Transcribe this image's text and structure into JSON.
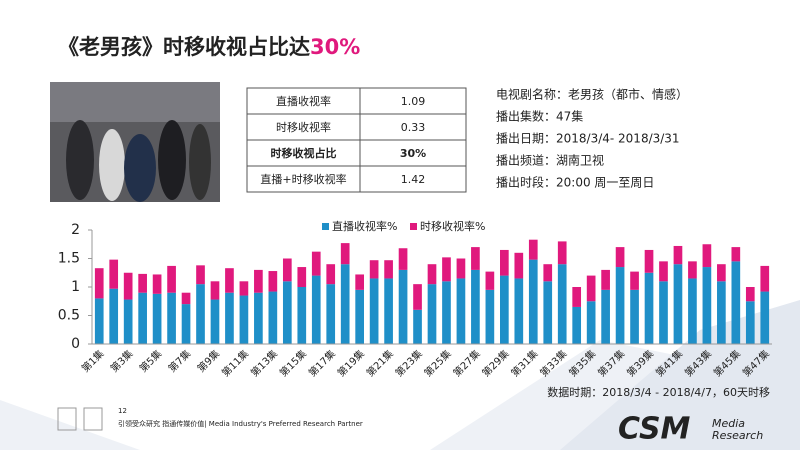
{
  "title": {
    "main": "《老男孩》时移收视占比达",
    "highlight": "30%"
  },
  "table": {
    "rows": [
      [
        "直播收视率",
        "1.09"
      ],
      [
        "时移收视率",
        "0.33"
      ],
      [
        "时移收视占比",
        "30%"
      ],
      [
        "直播+时移收视率",
        "1.42"
      ]
    ],
    "highlight_row": 2
  },
  "info": [
    "电视剧名称：老男孩（都市、情感）",
    "播出集数：47集",
    "播出日期：2018/3/4- 2018/3/31",
    "播出频道：湖南卫视",
    "播出时段：20:00 周一至周日"
  ],
  "chart_data": {
    "type": "stacked_bar",
    "categories": [
      "第1集",
      null,
      "第3集",
      null,
      "第5集",
      null,
      "第7集",
      null,
      "第9集",
      null,
      "第11集",
      null,
      "第13集",
      null,
      "第15集",
      null,
      "第17集",
      null,
      "第19集",
      null,
      "第21集",
      null,
      "第23集",
      null,
      "第25集",
      null,
      "第27集",
      null,
      "第29集",
      null,
      "第31集",
      null,
      "第33集",
      null,
      "第35集",
      null,
      "第37集",
      null,
      "第39集",
      null,
      "第41集",
      null,
      "第43集",
      null,
      "第45集",
      null,
      "第47集"
    ],
    "series": [
      {
        "name": "直播收视率%",
        "color": "#1f8fc8",
        "values": [
          0.8,
          0.97,
          0.78,
          0.9,
          0.88,
          0.9,
          0.7,
          1.05,
          0.78,
          0.9,
          0.85,
          0.9,
          0.92,
          1.1,
          1.0,
          1.2,
          1.05,
          1.4,
          0.95,
          1.15,
          1.15,
          1.3,
          0.6,
          1.05,
          1.1,
          1.15,
          1.3,
          0.95,
          1.2,
          1.15,
          1.48,
          1.1,
          1.4,
          0.65,
          0.75,
          0.95,
          1.35,
          0.95,
          1.25,
          1.1,
          1.4,
          1.15,
          1.35,
          1.1,
          1.45,
          0.75,
          0.92
        ]
      },
      {
        "name": "时移收视率%",
        "color": "#e0197d",
        "values": [
          0.53,
          0.51,
          0.47,
          0.33,
          0.34,
          0.47,
          0.2,
          0.33,
          0.32,
          0.43,
          0.25,
          0.4,
          0.36,
          0.4,
          0.35,
          0.42,
          0.35,
          0.37,
          0.27,
          0.32,
          0.32,
          0.38,
          0.45,
          0.35,
          0.42,
          0.35,
          0.4,
          0.32,
          0.45,
          0.45,
          0.35,
          0.3,
          0.4,
          0.35,
          0.45,
          0.35,
          0.35,
          0.32,
          0.4,
          0.35,
          0.32,
          0.3,
          0.4,
          0.3,
          0.25,
          0.25,
          0.45
        ]
      }
    ],
    "ylim": [
      0,
      2
    ],
    "yticks": [
      0,
      0.5,
      1,
      1.5,
      2
    ],
    "grid": false,
    "legend": "top"
  },
  "chart_note": "数据时期：2018/3/4 - 2018/4/7，60天时移",
  "footer": {
    "page": "12",
    "tagline": "引领受众研究 指通传媒价值| Media Industry's Preferred Research Partner",
    "brand": "CSM",
    "brand_sub": [
      "Media",
      "Research"
    ]
  }
}
